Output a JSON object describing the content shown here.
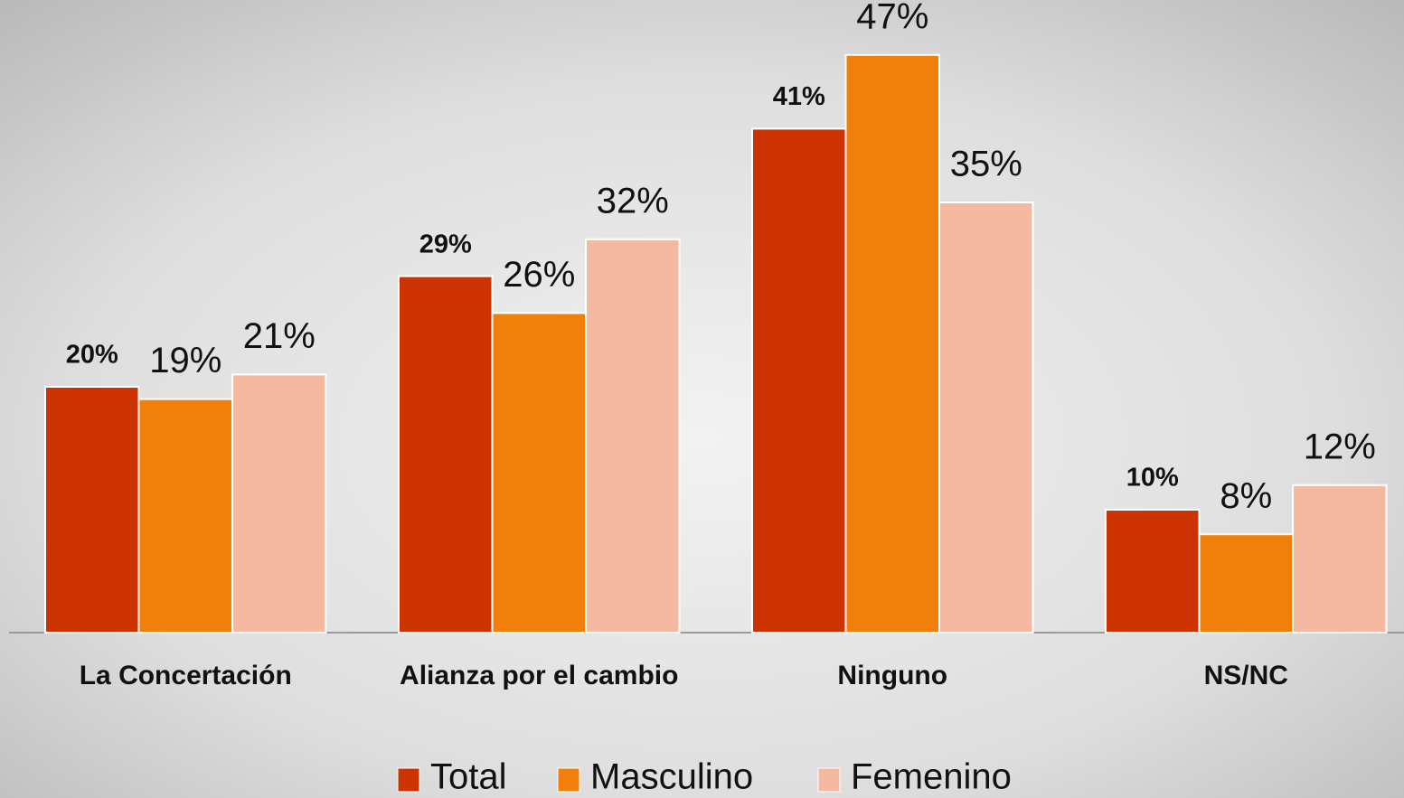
{
  "chart_data": {
    "type": "bar",
    "categories": [
      "La Concertación",
      "Alianza por el cambio",
      "Ninguno",
      "NS/NC"
    ],
    "series": [
      {
        "name": "Total",
        "color": "#cc3300",
        "values": [
          20,
          29,
          41,
          10
        ],
        "value_labels": [
          "20%",
          "29%",
          "41%",
          "10%"
        ]
      },
      {
        "name": "Masculino",
        "color": "#f0800a",
        "values": [
          19,
          26,
          47,
          8
        ],
        "value_labels": [
          "19%",
          "26%",
          "47%",
          "8%"
        ]
      },
      {
        "name": "Femenino",
        "color": "#f5b8a0",
        "values": [
          21,
          32,
          35,
          12
        ],
        "value_labels": [
          "21%",
          "32%",
          "35%",
          "12%"
        ]
      }
    ],
    "legend": "bottom"
  }
}
